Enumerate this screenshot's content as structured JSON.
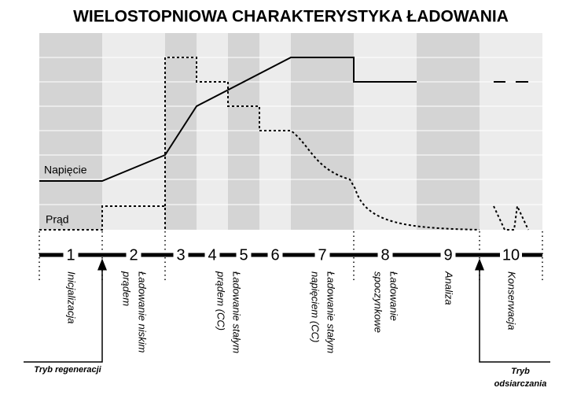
{
  "title": "WIELOSTOPNIOWA CHARAKTERYSTYKA ŁADOWANIA",
  "curves": {
    "voltage": "Napięcie",
    "current": "Prąd"
  },
  "stages": [
    {
      "number": "1",
      "label": [
        "Inicjalizacja"
      ]
    },
    {
      "number": "2",
      "label": [
        "Ładowanie niskim",
        "prądem"
      ]
    },
    {
      "number": "3",
      "label": []
    },
    {
      "number": "4",
      "label": []
    },
    {
      "number": "5",
      "label": [
        "Ładowanie stałym",
        "prądem (CC)"
      ]
    },
    {
      "number": "6",
      "label": []
    },
    {
      "number": "7",
      "label": [
        "Ładowanie stałym",
        "napięciem (CC)"
      ]
    },
    {
      "number": "8",
      "label": [
        "Ładowanie",
        "spoczynkowe"
      ]
    },
    {
      "number": "9",
      "label": [
        "Analiza"
      ]
    },
    {
      "number": "10",
      "label": [
        "Konserwacja"
      ]
    }
  ],
  "modes": {
    "regeneration": [
      "Tryb regeneracji"
    ],
    "desulfation": [
      "Tryb",
      "odsiarczania"
    ]
  }
}
